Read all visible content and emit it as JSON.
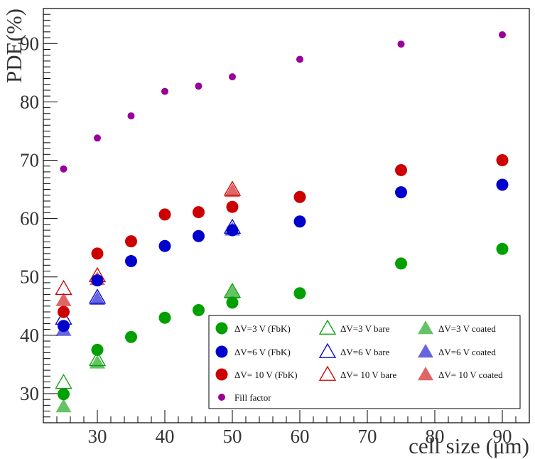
{
  "chart_data": {
    "type": "scatter",
    "xlabel": "cell size (μm)",
    "ylabel": "PDE(%)",
    "xlim": [
      22,
      94
    ],
    "ylim": [
      25,
      96
    ],
    "xticks": [
      30,
      40,
      50,
      60,
      70,
      80,
      90
    ],
    "yticks": [
      30,
      40,
      50,
      60,
      70,
      80,
      90
    ],
    "legend_position": "bottom-right",
    "series": [
      {
        "name": "ΔV=3 V (FbK)",
        "marker": "circle-filled",
        "color": "#00a000",
        "x": [
          25,
          30,
          35,
          40,
          45,
          50,
          60,
          75,
          90
        ],
        "y": [
          29.9,
          37.5,
          39.7,
          43.0,
          44.3,
          45.6,
          47.2,
          52.3,
          54.8
        ]
      },
      {
        "name": "ΔV=6 V (FbK)",
        "marker": "circle-filled",
        "color": "#0000cc",
        "x": [
          25,
          30,
          35,
          40,
          45,
          50,
          60,
          75,
          90
        ],
        "y": [
          41.6,
          49.4,
          52.7,
          55.3,
          57.0,
          58.0,
          59.5,
          64.5,
          65.8
        ]
      },
      {
        "name": "ΔV= 10 V (FbK)",
        "marker": "circle-filled",
        "color": "#cc0000",
        "x": [
          25,
          30,
          35,
          40,
          45,
          50,
          60,
          75,
          90
        ],
        "y": [
          44.0,
          54.0,
          56.1,
          60.7,
          61.1,
          62.0,
          63.7,
          68.3,
          70.0
        ]
      },
      {
        "name": "Fill factor",
        "marker": "circle-small",
        "color": "#990099",
        "x": [
          25,
          30,
          35,
          40,
          45,
          50,
          60,
          75,
          90
        ],
        "y": [
          68.5,
          73.8,
          77.6,
          81.8,
          82.7,
          84.3,
          87.3,
          89.9,
          91.5
        ]
      },
      {
        "name": "ΔV=3 V bare",
        "marker": "triangle-open",
        "color": "#00a000",
        "x": [
          25,
          30,
          50
        ],
        "y": [
          31.9,
          35.8,
          47.5
        ]
      },
      {
        "name": "ΔV=6 V bare",
        "marker": "triangle-open",
        "color": "#0000cc",
        "x": [
          25,
          30,
          50
        ],
        "y": [
          42.9,
          46.5,
          58.5
        ]
      },
      {
        "name": "ΔV= 10 V bare",
        "marker": "triangle-open",
        "color": "#cc0000",
        "x": [
          25,
          30,
          50
        ],
        "y": [
          48.0,
          50.2,
          65.0
        ]
      },
      {
        "name": "ΔV=3 V coated",
        "marker": "triangle-filled",
        "color": "#66c266",
        "x": [
          25,
          30,
          50
        ],
        "y": [
          27.8,
          35.3,
          47.3
        ]
      },
      {
        "name": "ΔV=6 V coated",
        "marker": "triangle-filled",
        "color": "#6666e0",
        "x": [
          25,
          30,
          50
        ],
        "y": [
          40.9,
          46.2,
          58.1
        ]
      },
      {
        "name": "ΔV= 10 V coated",
        "marker": "triangle-filled",
        "color": "#e06666",
        "x": [
          25,
          30,
          50
        ],
        "y": [
          46.0,
          49.6,
          64.7
        ]
      }
    ]
  }
}
